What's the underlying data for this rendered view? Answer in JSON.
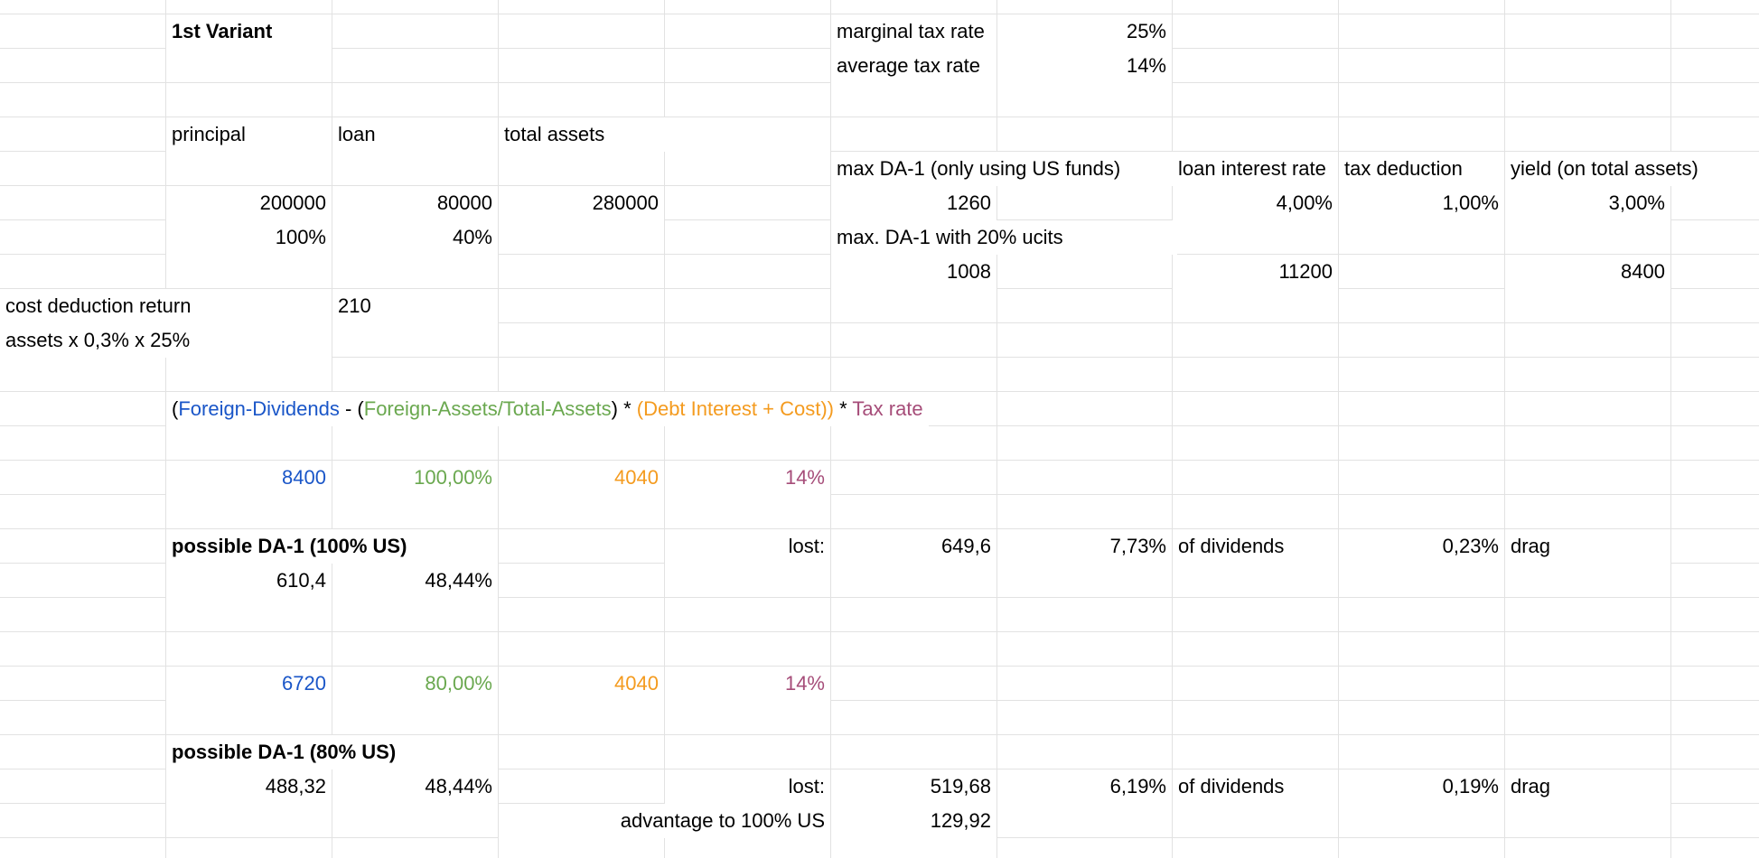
{
  "variant_title": "1st Variant",
  "rates": {
    "marginal_label": "marginal tax rate",
    "marginal_value": "25%",
    "average_label": "average tax rate",
    "average_value": "14%"
  },
  "headers": {
    "principal": "principal",
    "loan": "loan",
    "total_assets": "total assets",
    "max_da1": "max DA-1 (only using US funds)",
    "loan_interest_rate": "loan interest rate",
    "tax_deduction": "tax deduction",
    "yield": "yield (on total assets)"
  },
  "amounts": {
    "principal": "200000",
    "loan": "80000",
    "total_assets": "280000",
    "max_da1": "1260",
    "loan_interest_rate": "4,00%",
    "tax_deduction": "1,00%",
    "yield": "3,00%",
    "principal_pct": "100%",
    "loan_pct": "40%",
    "max_da1_ucits_label": "max. DA-1 with 20% ucits",
    "max_da1_ucits": "1008",
    "loan_interest": "11200",
    "yield_amount": "8400"
  },
  "cost_deduction": {
    "label": "cost deduction return",
    "value": "210",
    "note": "assets x 0,3% x 25%"
  },
  "formula": {
    "open": "(",
    "foreign_dividends": "Foreign-Dividends",
    "minus_open": " - (",
    "foreign_assets": "Foreign-Assets/Total-Assets",
    "close_times": ") * ",
    "debt_interest": "(Debt Interest + Cost))",
    "times": " * ",
    "tax_rate": "Tax rate"
  },
  "scenario_100": {
    "dividends": "8400",
    "ratio": "100,00%",
    "interest_cost": "4040",
    "tax": "14%",
    "title": "possible DA-1  (100% US)",
    "lost_label": "lost:",
    "lost_value": "649,6",
    "lost_pct": "7,73%",
    "of_dividends": "of dividends",
    "drag_pct": "0,23%",
    "drag": "drag",
    "da1_value": "610,4",
    "da1_pct": "48,44%"
  },
  "scenario_80": {
    "dividends": "6720",
    "ratio": "80,00%",
    "interest_cost": "4040",
    "tax": "14%",
    "title": "possible DA-1 (80% US)",
    "da1_value": "488,32",
    "da1_pct": "48,44%",
    "lost_label": "lost:",
    "lost_value": "519,68",
    "lost_pct": "6,19%",
    "of_dividends": "of dividends",
    "drag_pct": "0,19%",
    "drag": "drag",
    "advantage_label": "advantage to 100% US",
    "advantage_value": "129,92"
  },
  "colors": {
    "blue": "#1a56c8",
    "green": "#6aa84f",
    "orange": "#f49b1f",
    "purple": "#a64d79",
    "gridline": "#e2e2e2"
  }
}
